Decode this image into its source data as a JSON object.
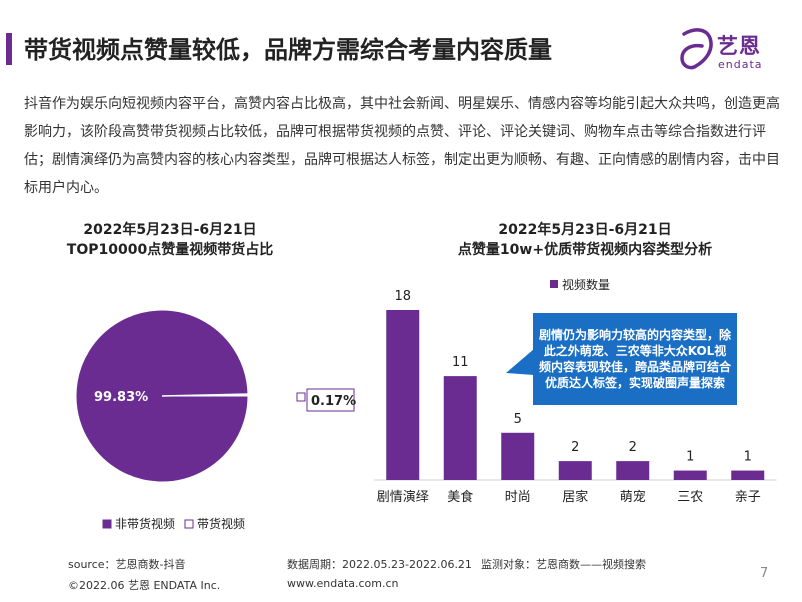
{
  "header": {
    "title": "带货视频点赞量较低，品牌方需综合考量内容质量",
    "logo_cn": "艺恩",
    "logo_en": "endata"
  },
  "body_text": "抖音作为娱乐向短视频内容平台，高赞内容占比极高，其中社会新闻、明星娱乐、情感内容等均能引起大众共鸣，创造更高影响力，该阶段高赞带货视频占比较低，品牌可根据带货视频的点赞、评论、评论关键词、购物车点击等综合指数进行评估；剧情演绎仍为高赞内容的核心内容类型，品牌可根据达人标签，制定出更为顺畅、有趣、正向情感的剧情内容，击中目标用户内心。",
  "callout": "剧情仍为影响力较高的内容类型，除此之外萌宠、三农等非大众KOL视频内容表现较佳，跨品类品牌可结合优质达人标签，实现破圈声量探索",
  "footer": {
    "source": "source：艺恩商数-抖音",
    "period": "数据周期：2022.05.23-2022.06.21",
    "target": "监测对象：艺恩商数——视频搜索",
    "copyright": "©2022.06 艺恩 ENDATA Inc.",
    "website": "www.endata.com.cn",
    "page": "7"
  },
  "colors": {
    "brand": "#6a2c91",
    "callout": "#1a6fc4"
  },
  "chart_data": [
    {
      "type": "pie",
      "title_line1": "2022年5月23日-6月21日",
      "title_line2": "TOP10000点赞量视频带货占比",
      "slices": [
        {
          "name": "非带货视频",
          "value": 99.83,
          "label": "99.83%",
          "color": "#6a2c91"
        },
        {
          "name": "带货视频",
          "value": 0.17,
          "label": "0.17%",
          "color": "#ffffff"
        }
      ],
      "legend": "bottom"
    },
    {
      "type": "bar",
      "title_line1": "2022年5月23日-6月21日",
      "title_line2": "点赞量10w+优质带货视频内容类型分析",
      "categories": [
        "剧情演绎",
        "美食",
        "时尚",
        "居家",
        "萌宠",
        "三农",
        "亲子"
      ],
      "series": [
        {
          "name": "视频数量",
          "values": [
            18,
            11,
            5,
            2,
            2,
            1,
            1
          ],
          "color": "#6a2c91"
        }
      ],
      "data_labels": [
        "18",
        "11",
        "5",
        "2",
        "2",
        "1",
        "1"
      ],
      "ylim": [
        0,
        18
      ],
      "legend": "top-left"
    }
  ]
}
